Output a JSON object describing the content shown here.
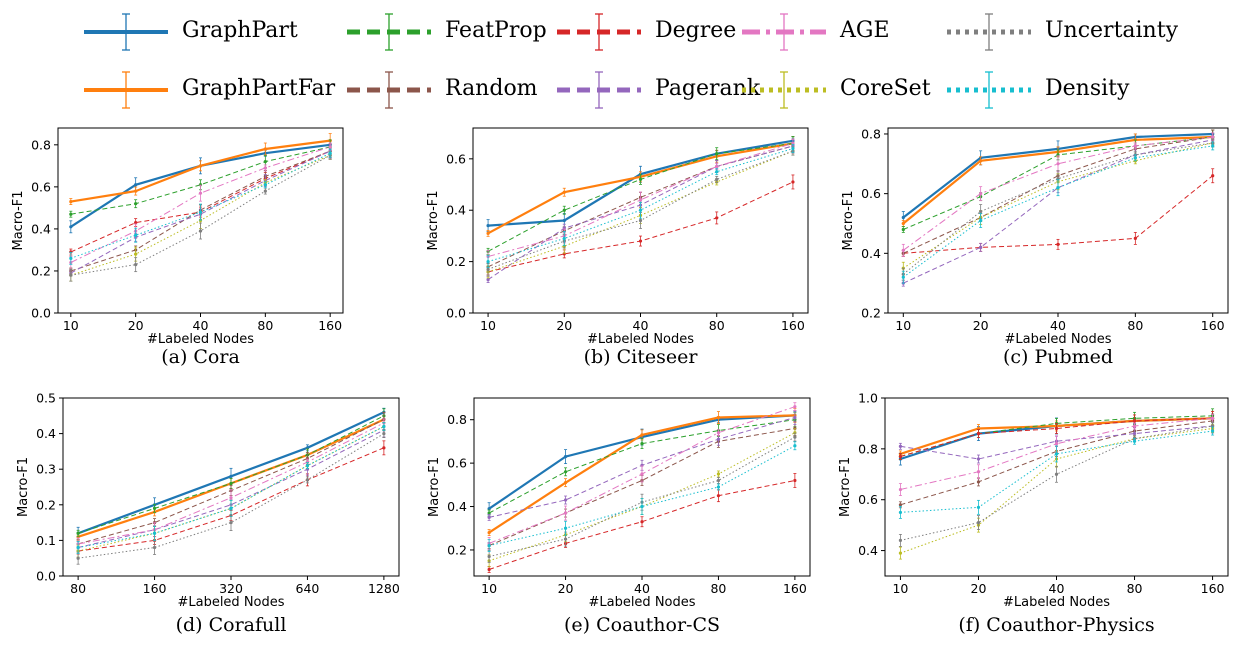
{
  "legend": [
    {
      "name": "GraphPart",
      "color": "#1f77b4",
      "dash": "solid"
    },
    {
      "name": "FeatProp",
      "color": "#2ca02c",
      "dash": "dashed"
    },
    {
      "name": "Degree",
      "color": "#d62728",
      "dash": "dashed"
    },
    {
      "name": "AGE",
      "color": "#e377c2",
      "dash": "dashdot"
    },
    {
      "name": "Uncertainty",
      "color": "#7f7f7f",
      "dash": "dotted"
    },
    {
      "name": "GraphPartFar",
      "color": "#ff7f0e",
      "dash": "solid"
    },
    {
      "name": "Random",
      "color": "#8c564b",
      "dash": "dashed"
    },
    {
      "name": "Pagerank",
      "color": "#9467bd",
      "dash": "dashed"
    },
    {
      "name": "CoreSet",
      "color": "#bcbd22",
      "dash": "dotted"
    },
    {
      "name": "Density",
      "color": "#17becf",
      "dash": "dotted"
    }
  ],
  "chart_data": [
    {
      "type": "line",
      "caption": "(a) Cora",
      "xlabel": "#Labeled Nodes",
      "ylabel": "Macro-F1",
      "categories": [
        "10",
        "20",
        "40",
        "80",
        "160"
      ],
      "ylim": [
        0,
        0.88
      ],
      "yticks": [
        "0.0",
        "0.2",
        "0.4",
        "0.6",
        "0.8"
      ],
      "series": [
        {
          "name": "GraphPart",
          "values": [
            0.41,
            0.61,
            0.7,
            0.76,
            0.8
          ]
        },
        {
          "name": "GraphPartFar",
          "values": [
            0.53,
            0.58,
            0.7,
            0.78,
            0.82
          ]
        },
        {
          "name": "FeatProp",
          "values": [
            0.47,
            0.52,
            0.61,
            0.72,
            0.79
          ]
        },
        {
          "name": "Degree",
          "values": [
            0.29,
            0.43,
            0.48,
            0.64,
            0.77
          ]
        },
        {
          "name": "Random",
          "values": [
            0.2,
            0.3,
            0.49,
            0.65,
            0.77
          ]
        },
        {
          "name": "Pagerank",
          "values": [
            0.19,
            0.36,
            0.47,
            0.63,
            0.77
          ]
        },
        {
          "name": "AGE",
          "values": [
            0.24,
            0.39,
            0.57,
            0.69,
            0.79
          ]
        },
        {
          "name": "CoreSet",
          "values": [
            0.18,
            0.28,
            0.44,
            0.62,
            0.75
          ]
        },
        {
          "name": "Uncertainty",
          "values": [
            0.18,
            0.23,
            0.39,
            0.58,
            0.75
          ]
        },
        {
          "name": "Density",
          "values": [
            0.26,
            0.37,
            0.48,
            0.61,
            0.76
          ]
        }
      ]
    },
    {
      "type": "line",
      "caption": "(b) Citeseer",
      "xlabel": "#Labeled Nodes",
      "ylabel": "Macro-F1",
      "categories": [
        "10",
        "20",
        "40",
        "80",
        "160"
      ],
      "ylim": [
        0,
        0.72
      ],
      "yticks": [
        "0.0",
        "0.2",
        "0.4",
        "0.6"
      ],
      "series": [
        {
          "name": "GraphPart",
          "values": [
            0.34,
            0.36,
            0.54,
            0.62,
            0.67
          ]
        },
        {
          "name": "GraphPartFar",
          "values": [
            0.31,
            0.47,
            0.53,
            0.61,
            0.66
          ]
        },
        {
          "name": "FeatProp",
          "values": [
            0.24,
            0.4,
            0.52,
            0.62,
            0.66
          ]
        },
        {
          "name": "Degree",
          "values": [
            0.16,
            0.23,
            0.28,
            0.37,
            0.51
          ]
        },
        {
          "name": "Random",
          "values": [
            0.18,
            0.32,
            0.45,
            0.57,
            0.65
          ]
        },
        {
          "name": "Pagerank",
          "values": [
            0.13,
            0.33,
            0.42,
            0.57,
            0.65
          ]
        },
        {
          "name": "AGE",
          "values": [
            0.22,
            0.3,
            0.44,
            0.57,
            0.66
          ]
        },
        {
          "name": "CoreSet",
          "values": [
            0.16,
            0.26,
            0.38,
            0.51,
            0.63
          ]
        },
        {
          "name": "Uncertainty",
          "values": [
            0.17,
            0.28,
            0.36,
            0.52,
            0.63
          ]
        },
        {
          "name": "Density",
          "values": [
            0.2,
            0.29,
            0.4,
            0.55,
            0.64
          ]
        }
      ]
    },
    {
      "type": "line",
      "caption": "(c) Pubmed",
      "xlabel": "#Labeled Nodes",
      "ylabel": "Macro-F1",
      "categories": [
        "10",
        "20",
        "40",
        "80",
        "160"
      ],
      "ylim": [
        0.2,
        0.82
      ],
      "yticks": [
        "0.2",
        "0.4",
        "0.6",
        "0.8"
      ],
      "series": [
        {
          "name": "GraphPart",
          "values": [
            0.52,
            0.72,
            0.75,
            0.79,
            0.8
          ]
        },
        {
          "name": "GraphPartFar",
          "values": [
            0.5,
            0.71,
            0.74,
            0.78,
            0.79
          ]
        },
        {
          "name": "FeatProp",
          "values": [
            0.48,
            0.59,
            0.73,
            0.76,
            0.79
          ]
        },
        {
          "name": "Degree",
          "values": [
            0.4,
            0.42,
            0.43,
            0.45,
            0.66
          ]
        },
        {
          "name": "Random",
          "values": [
            0.4,
            0.52,
            0.66,
            0.75,
            0.79
          ]
        },
        {
          "name": "Pagerank",
          "values": [
            0.3,
            0.42,
            0.62,
            0.73,
            0.78
          ]
        },
        {
          "name": "AGE",
          "values": [
            0.41,
            0.6,
            0.7,
            0.76,
            0.79
          ]
        },
        {
          "name": "CoreSet",
          "values": [
            0.35,
            0.52,
            0.64,
            0.71,
            0.77
          ]
        },
        {
          "name": "Uncertainty",
          "values": [
            0.33,
            0.54,
            0.65,
            0.73,
            0.77
          ]
        },
        {
          "name": "Density",
          "values": [
            0.32,
            0.51,
            0.62,
            0.72,
            0.76
          ]
        }
      ]
    },
    {
      "type": "line",
      "caption": "(d) Corafull",
      "xlabel": "#Labeled Nodes",
      "ylabel": "Macro-F1",
      "categories": [
        "80",
        "160",
        "320",
        "640",
        "1280"
      ],
      "ylim": [
        0,
        0.5
      ],
      "yticks": [
        "0.0",
        "0.1",
        "0.2",
        "0.3",
        "0.4",
        "0.5"
      ],
      "series": [
        {
          "name": "GraphPart",
          "values": [
            0.12,
            0.2,
            0.28,
            0.36,
            0.46
          ]
        },
        {
          "name": "GraphPartFar",
          "values": [
            0.11,
            0.18,
            0.26,
            0.34,
            0.44
          ]
        },
        {
          "name": "FeatProp",
          "values": [
            0.12,
            0.19,
            0.26,
            0.34,
            0.45
          ]
        },
        {
          "name": "Degree",
          "values": [
            0.07,
            0.1,
            0.17,
            0.27,
            0.36
          ]
        },
        {
          "name": "Random",
          "values": [
            0.09,
            0.15,
            0.24,
            0.33,
            0.44
          ]
        },
        {
          "name": "Pagerank",
          "values": [
            0.08,
            0.13,
            0.2,
            0.3,
            0.41
          ]
        },
        {
          "name": "AGE",
          "values": [
            0.09,
            0.13,
            0.22,
            0.32,
            0.43
          ]
        },
        {
          "name": "CoreSet",
          "values": [
            0.07,
            0.12,
            0.19,
            0.31,
            0.42
          ]
        },
        {
          "name": "Uncertainty",
          "values": [
            0.05,
            0.08,
            0.15,
            0.27,
            0.4
          ]
        },
        {
          "name": "Density",
          "values": [
            0.08,
            0.12,
            0.19,
            0.31,
            0.42
          ]
        }
      ]
    },
    {
      "type": "line",
      "caption": "(e) Coauthor-CS",
      "xlabel": "#Labeled Nodes",
      "ylabel": "Macro-F1",
      "categories": [
        "10",
        "20",
        "40",
        "80",
        "160"
      ],
      "ylim": [
        0.08,
        0.9
      ],
      "yticks": [
        "0.2",
        "0.4",
        "0.6",
        "0.8"
      ],
      "series": [
        {
          "name": "GraphPart",
          "values": [
            0.39,
            0.63,
            0.72,
            0.8,
            0.82
          ]
        },
        {
          "name": "GraphPartFar",
          "values": [
            0.28,
            0.51,
            0.73,
            0.81,
            0.82
          ]
        },
        {
          "name": "FeatProp",
          "values": [
            0.37,
            0.56,
            0.69,
            0.75,
            0.8
          ]
        },
        {
          "name": "Degree",
          "values": [
            0.11,
            0.23,
            0.33,
            0.45,
            0.52
          ]
        },
        {
          "name": "Random",
          "values": [
            0.22,
            0.37,
            0.52,
            0.7,
            0.76
          ]
        },
        {
          "name": "Pagerank",
          "values": [
            0.35,
            0.43,
            0.59,
            0.71,
            0.81
          ]
        },
        {
          "name": "AGE",
          "values": [
            0.23,
            0.37,
            0.55,
            0.74,
            0.86
          ]
        },
        {
          "name": "CoreSet",
          "values": [
            0.15,
            0.27,
            0.4,
            0.55,
            0.74
          ]
        },
        {
          "name": "Uncertainty",
          "values": [
            0.17,
            0.25,
            0.42,
            0.52,
            0.72
          ]
        },
        {
          "name": "Density",
          "values": [
            0.22,
            0.3,
            0.4,
            0.49,
            0.68
          ]
        }
      ]
    },
    {
      "type": "line",
      "caption": "(f) Coauthor-Physics",
      "xlabel": "#Labeled Nodes",
      "ylabel": "Macro-F1",
      "categories": [
        "10",
        "20",
        "40",
        "80",
        "160"
      ],
      "ylim": [
        0.3,
        1.0
      ],
      "yticks": [
        "0.4",
        "0.6",
        "0.8",
        "1.0"
      ],
      "series": [
        {
          "name": "GraphPart",
          "values": [
            0.76,
            0.86,
            0.89,
            0.91,
            0.92
          ]
        },
        {
          "name": "GraphPartFar",
          "values": [
            0.78,
            0.88,
            0.89,
            0.91,
            0.92
          ]
        },
        {
          "name": "FeatProp",
          "values": [
            0.77,
            0.86,
            0.9,
            0.92,
            0.93
          ]
        },
        {
          "name": "Degree",
          "values": [
            0.77,
            0.86,
            0.88,
            0.91,
            0.92
          ]
        },
        {
          "name": "Random",
          "values": [
            0.58,
            0.67,
            0.79,
            0.87,
            0.91
          ]
        },
        {
          "name": "Pagerank",
          "values": [
            0.81,
            0.76,
            0.83,
            0.86,
            0.89
          ]
        },
        {
          "name": "AGE",
          "values": [
            0.64,
            0.71,
            0.82,
            0.89,
            0.92
          ]
        },
        {
          "name": "CoreSet",
          "values": [
            0.39,
            0.5,
            0.76,
            0.84,
            0.88
          ]
        },
        {
          "name": "Uncertainty",
          "values": [
            0.44,
            0.51,
            0.7,
            0.84,
            0.89
          ]
        },
        {
          "name": "Density",
          "values": [
            0.55,
            0.57,
            0.78,
            0.83,
            0.87
          ]
        }
      ]
    }
  ]
}
